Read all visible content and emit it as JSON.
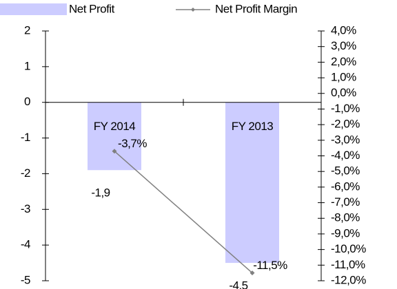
{
  "chart_data": {
    "type": "bar",
    "categories": [
      "FY 2014",
      "FY 2013"
    ],
    "series": [
      {
        "name": "Net Profit",
        "type": "bar",
        "axis": "y",
        "color": "#ccccff",
        "values": [
          -1.9,
          -4.5
        ],
        "value_labels": [
          "-1,9",
          "-4,5"
        ]
      },
      {
        "name": "Net Profit Margin",
        "type": "line",
        "axis": "y2",
        "color": "#808080",
        "values": [
          -3.7,
          -11.5
        ],
        "value_labels": [
          "-3,7%",
          "-11,5%"
        ]
      }
    ],
    "ylim": [
      -5,
      2
    ],
    "yticks": [
      -5,
      -4,
      -3,
      -2,
      -1,
      0,
      1,
      2
    ],
    "y2lim": [
      -12,
      4
    ],
    "y2ticks": [
      {
        "value": -12,
        "label": "-12,0%"
      },
      {
        "value": -11,
        "label": "-11,0%"
      },
      {
        "value": -10,
        "label": "-10,0%"
      },
      {
        "value": -9,
        "label": "-9,0%"
      },
      {
        "value": -8,
        "label": "-8,0%"
      },
      {
        "value": -7,
        "label": "-7,0%"
      },
      {
        "value": -6,
        "label": "-6,0%"
      },
      {
        "value": -5,
        "label": "-5,0%"
      },
      {
        "value": -4,
        "label": "-4,0%"
      },
      {
        "value": -3,
        "label": "-3,0%"
      },
      {
        "value": -2,
        "label": "-2,0%"
      },
      {
        "value": -1,
        "label": "-1,0%"
      },
      {
        "value": 0,
        "label": "0,0%"
      },
      {
        "value": 1,
        "label": "1,0%"
      },
      {
        "value": 2,
        "label": "2,0%"
      },
      {
        "value": 3,
        "label": "3,0%"
      },
      {
        "value": 4,
        "label": "4,0%"
      }
    ],
    "grid": false,
    "legend": "top"
  }
}
